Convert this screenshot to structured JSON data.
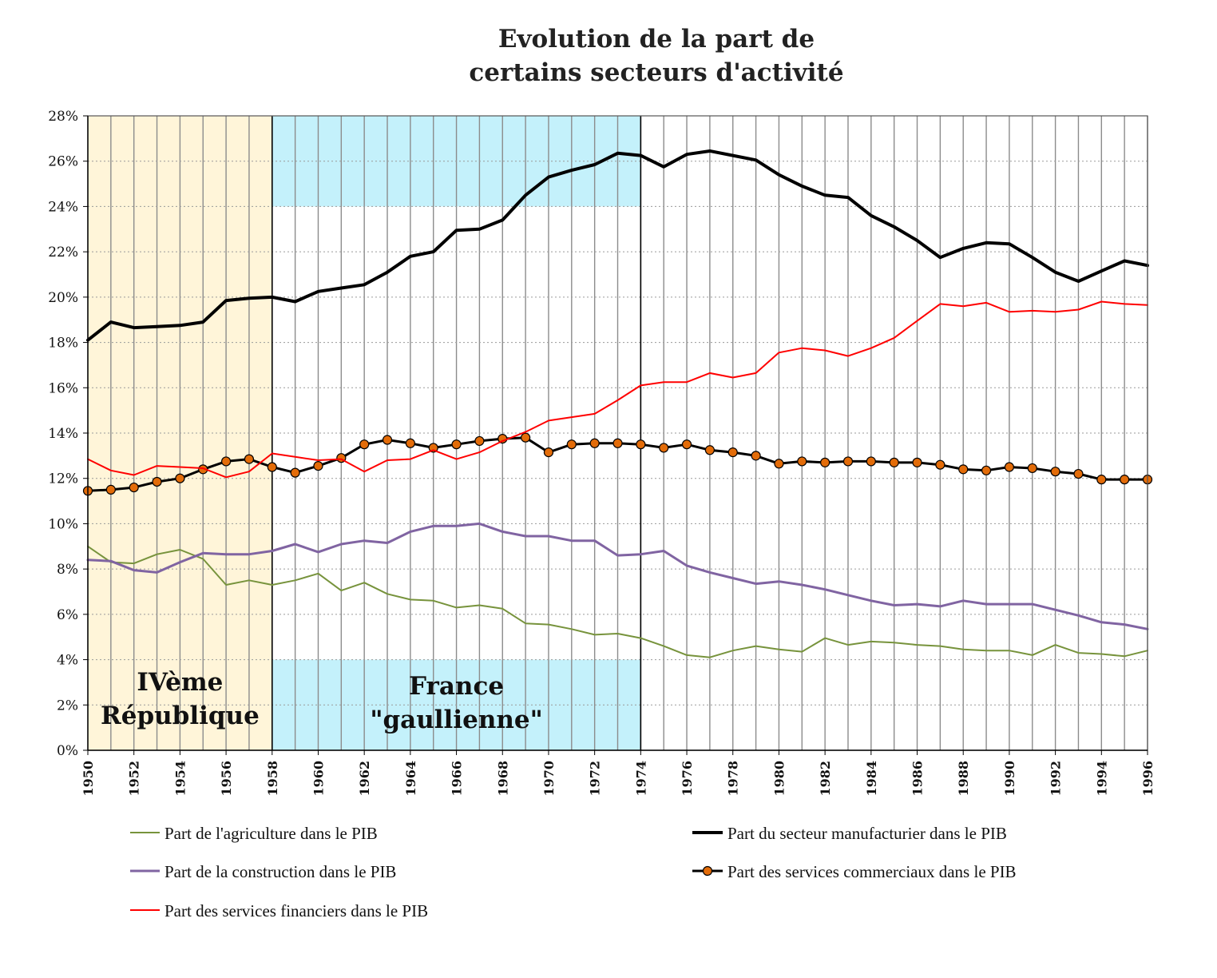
{
  "chart_data": {
    "type": "line",
    "title_lines": [
      "Evolution de la part de",
      "certains secteurs d'activité"
    ],
    "xlabel": "",
    "ylabel": "",
    "x_start": 1950,
    "x_end": 1996,
    "x_tick_labels": [
      "1950",
      "1952",
      "1954",
      "1956",
      "1958",
      "1960",
      "1962",
      "1964",
      "1966",
      "1968",
      "1970",
      "1972",
      "1974",
      "1976",
      "1978",
      "1980",
      "1982",
      "1984",
      "1986",
      "1988",
      "1990",
      "1992",
      "1994",
      "1996"
    ],
    "ylim": [
      0,
      28
    ],
    "y_tick_labels": [
      "0%",
      "2%",
      "4%",
      "6%",
      "8%",
      "10%",
      "12%",
      "14%",
      "16%",
      "18%",
      "20%",
      "22%",
      "24%",
      "26%",
      "28%"
    ],
    "grid": true,
    "regions": [
      {
        "label_lines": [
          "IVème",
          "République"
        ],
        "x_from": 1950,
        "x_to": 1958,
        "y_from": 0,
        "y_to": 28,
        "color": "#fff5d9"
      },
      {
        "label_lines": [
          "France",
          "\"gaullienne\""
        ],
        "x_from": 1958,
        "x_to": 1974,
        "y_from": 0,
        "y_to": 4,
        "color": "#c4f1fb"
      },
      {
        "label_lines": [],
        "x_from": 1958,
        "x_to": 1974,
        "y_from": 24,
        "y_to": 28,
        "color": "#c4f1fb"
      }
    ],
    "series": [
      {
        "name": "Part de l'agriculture dans le PIB",
        "color": "#77933c",
        "width": 2,
        "marker": false,
        "values": [
          9.0,
          8.3,
          8.25,
          8.65,
          8.85,
          8.45,
          7.3,
          7.5,
          7.3,
          7.5,
          7.8,
          7.05,
          7.4,
          6.9,
          6.65,
          6.6,
          6.3,
          6.4,
          6.25,
          5.6,
          5.55,
          5.35,
          5.1,
          5.15,
          4.95,
          4.6,
          4.2,
          4.1,
          4.4,
          4.6,
          4.45,
          4.35,
          4.95,
          4.65,
          4.8,
          4.75,
          4.65,
          4.6,
          4.45,
          4.4,
          4.4,
          4.2,
          4.65,
          4.3,
          4.25,
          4.15,
          4.4
        ]
      },
      {
        "name": "Part du secteur manufacturier dans le PIB",
        "color": "#000000",
        "width": 4,
        "marker": false,
        "values": [
          18.1,
          18.9,
          18.65,
          18.7,
          18.75,
          18.9,
          19.85,
          19.95,
          20.0,
          19.8,
          20.25,
          20.4,
          20.55,
          21.1,
          21.8,
          22.0,
          22.95,
          23.0,
          23.4,
          24.5,
          25.3,
          25.6,
          25.85,
          26.35,
          26.25,
          25.75,
          26.3,
          26.45,
          26.25,
          26.05,
          25.4,
          24.9,
          24.5,
          24.4,
          23.6,
          23.1,
          22.5,
          21.75,
          22.15,
          22.4,
          22.35,
          21.75,
          21.1,
          20.7,
          21.15,
          21.6,
          21.4
        ]
      },
      {
        "name": "Part de la construction dans le PIB",
        "color": "#8064a2",
        "width": 3,
        "marker": false,
        "values": [
          8.4,
          8.35,
          7.95,
          7.85,
          8.3,
          8.7,
          8.65,
          8.65,
          8.8,
          9.1,
          8.75,
          9.1,
          9.25,
          9.15,
          9.65,
          9.9,
          9.9,
          10.0,
          9.65,
          9.45,
          9.45,
          9.25,
          9.25,
          8.6,
          8.65,
          8.8,
          8.15,
          7.85,
          7.6,
          7.35,
          7.45,
          7.3,
          7.1,
          6.85,
          6.6,
          6.4,
          6.45,
          6.35,
          6.6,
          6.45,
          6.45,
          6.45,
          6.2,
          5.95,
          5.65,
          5.55,
          5.35
        ]
      },
      {
        "name": "Part des services commerciaux dans le PIB",
        "color": "#000000",
        "width": 3,
        "marker": true,
        "marker_color": "#e36c09",
        "values": [
          11.45,
          11.5,
          11.6,
          11.85,
          12.0,
          12.4,
          12.75,
          12.85,
          12.5,
          12.25,
          12.55,
          12.9,
          13.5,
          13.7,
          13.55,
          13.35,
          13.5,
          13.65,
          13.75,
          13.8,
          13.15,
          13.5,
          13.55,
          13.55,
          13.5,
          13.35,
          13.5,
          13.25,
          13.15,
          13.0,
          12.65,
          12.75,
          12.7,
          12.75,
          12.75,
          12.7,
          12.7,
          12.6,
          12.4,
          12.35,
          12.5,
          12.45,
          12.3,
          12.2,
          11.95,
          11.95,
          11.95
        ]
      },
      {
        "name": "Part des services financiers dans le PIB",
        "color": "#ff0000",
        "width": 2,
        "marker": false,
        "values": [
          12.85,
          12.35,
          12.15,
          12.55,
          12.5,
          12.45,
          12.05,
          12.3,
          13.1,
          12.95,
          12.8,
          12.85,
          12.3,
          12.8,
          12.85,
          13.25,
          12.85,
          13.15,
          13.65,
          14.05,
          14.55,
          14.7,
          14.85,
          15.45,
          16.1,
          16.25,
          16.25,
          16.65,
          16.45,
          16.65,
          17.55,
          17.75,
          17.65,
          17.4,
          17.75,
          18.2,
          18.95,
          19.7,
          19.6,
          19.75,
          19.35,
          19.4,
          19.35,
          19.45,
          19.8,
          19.7,
          19.65
        ]
      }
    ],
    "legend_placement": "bottom",
    "legend_order": [
      0,
      1,
      2,
      3,
      4
    ]
  }
}
